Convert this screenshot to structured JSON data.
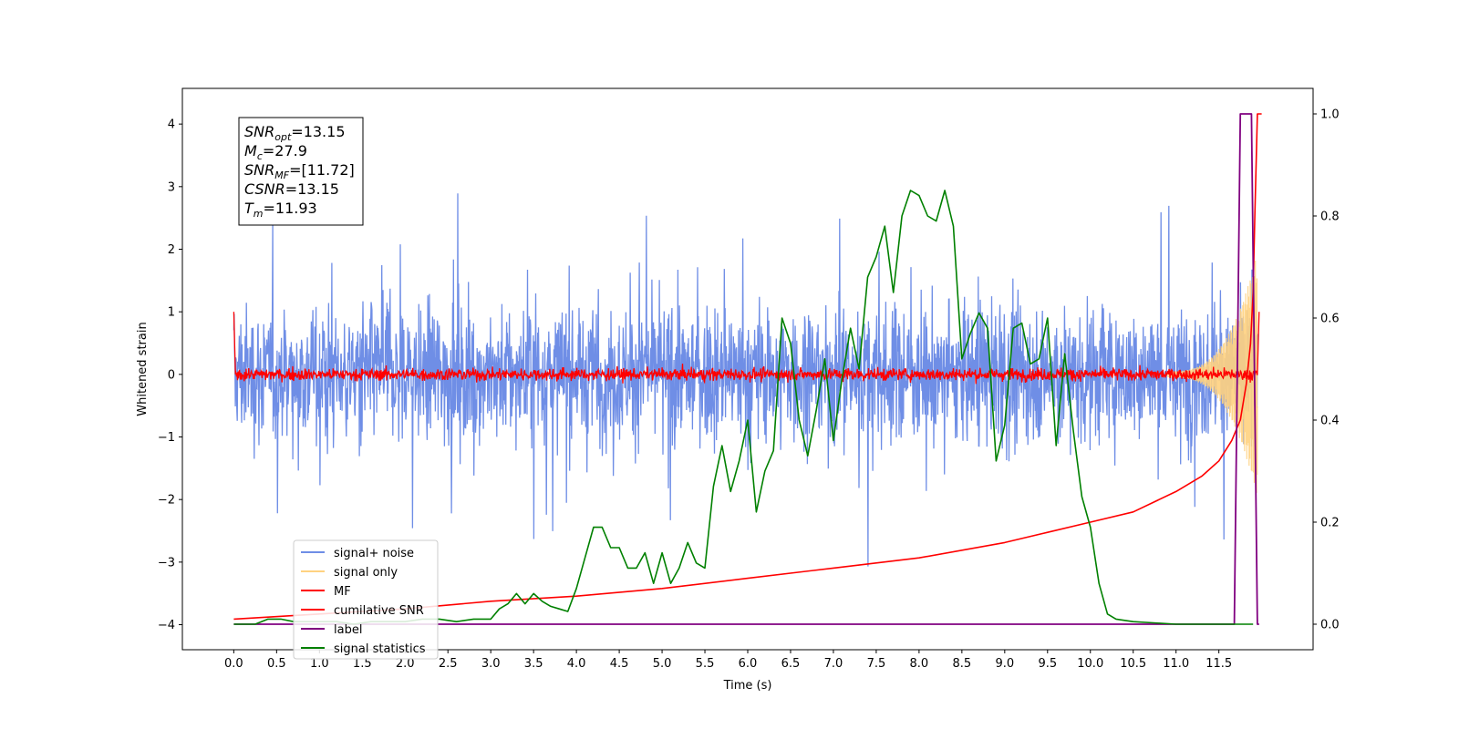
{
  "chart_data": {
    "type": "line",
    "xlabel": "Time (s)",
    "ylabel": "Whitened strain",
    "xlim": [
      -0.6,
      12.6
    ],
    "ylim": [
      -4.4,
      4.57
    ],
    "ylim_right": [
      -0.05,
      1.05
    ],
    "x_ticks": [
      0,
      0.5,
      1,
      1.5,
      2,
      2.5,
      3,
      3.5,
      4,
      4.5,
      5,
      5.5,
      6,
      6.5,
      7,
      7.5,
      8,
      8.5,
      9,
      9.5,
      10,
      10.5,
      11,
      11.5
    ],
    "x_tick_labels": [
      "0.0",
      "0.5",
      "1.0",
      "1.5",
      "2.0",
      "2.5",
      "3.0",
      "3.5",
      "4.0",
      "4.5",
      "5.0",
      "5.5",
      "6.0",
      "6.5",
      "7.0",
      "7.5",
      "8.0",
      "8.5",
      "9.0",
      "9.5",
      "10.0",
      "10.5",
      "11.0",
      "11.5"
    ],
    "y_ticks": [
      -4,
      -3,
      -2,
      -1,
      0,
      1,
      2,
      3,
      4
    ],
    "y_tick_labels": [
      "−4",
      "−3",
      "−2",
      "−1",
      "0",
      "1",
      "2",
      "3",
      "4"
    ],
    "y_right_ticks": [
      0,
      0.2,
      0.4,
      0.6,
      0.8,
      1.0
    ],
    "y_right_tick_labels": [
      "0.0",
      "0.2",
      "0.4",
      "0.6",
      "0.8",
      "1.0"
    ],
    "legend_position": "lower-left",
    "grid": false,
    "series": [
      {
        "name": "signal+ noise",
        "color": "#6f8ee6",
        "axis": "left",
        "description": "whitened noise, ±(1.5–4.2) envelope over 0–11.95 s"
      },
      {
        "name": "signal only",
        "color": "#ffd280",
        "axis": "left",
        "description": "chirp growing from ~0 near 11.0 s to ±1.9 near 11.9 s"
      },
      {
        "name": "MF",
        "color": "#ff0000",
        "axis": "left",
        "x": [
          0.0,
          0.02,
          11.95,
          11.97
        ],
        "y": [
          1.0,
          0.0,
          0.0,
          1.0
        ]
      },
      {
        "name": "cumilative SNR",
        "color": "#ff0000",
        "axis": "right",
        "x": [
          0.0,
          1.0,
          2.0,
          3.0,
          4.0,
          5.0,
          6.0,
          7.0,
          8.0,
          9.0,
          9.5,
          10.0,
          10.5,
          11.0,
          11.3,
          11.5,
          11.65,
          11.75,
          11.82,
          11.87,
          11.9,
          11.92,
          11.95,
          11.97,
          12.0
        ],
        "y": [
          0.01,
          0.02,
          0.03,
          0.045,
          0.055,
          0.07,
          0.09,
          0.11,
          0.13,
          0.16,
          0.18,
          0.2,
          0.22,
          0.26,
          0.29,
          0.32,
          0.36,
          0.4,
          0.47,
          0.55,
          0.65,
          0.8,
          1.0,
          1.0,
          1.0
        ]
      },
      {
        "name": "label",
        "color": "#800080",
        "axis": "right",
        "x": [
          0.0,
          11.68,
          11.75,
          11.88,
          11.95,
          11.97
        ],
        "y": [
          0.0,
          0.0,
          1.0,
          1.0,
          0.0,
          0.0
        ]
      },
      {
        "name": "signal statistics",
        "color": "#008000",
        "axis": "right",
        "x": [
          0.0,
          0.25,
          0.4,
          0.55,
          0.7,
          0.85,
          1.0,
          1.2,
          1.4,
          1.6,
          1.8,
          2.0,
          2.2,
          2.4,
          2.6,
          2.8,
          3.0,
          3.1,
          3.2,
          3.3,
          3.4,
          3.5,
          3.6,
          3.7,
          3.8,
          3.9,
          4.0,
          4.1,
          4.2,
          4.3,
          4.4,
          4.5,
          4.6,
          4.7,
          4.8,
          4.9,
          5.0,
          5.1,
          5.2,
          5.3,
          5.4,
          5.5,
          5.6,
          5.7,
          5.8,
          5.9,
          6.0,
          6.1,
          6.2,
          6.3,
          6.4,
          6.5,
          6.6,
          6.7,
          6.8,
          6.9,
          7.0,
          7.1,
          7.2,
          7.3,
          7.4,
          7.5,
          7.6,
          7.7,
          7.8,
          7.9,
          8.0,
          8.1,
          8.2,
          8.3,
          8.4,
          8.5,
          8.6,
          8.7,
          8.8,
          8.9,
          9.0,
          9.1,
          9.2,
          9.3,
          9.4,
          9.5,
          9.6,
          9.7,
          9.8,
          9.9,
          10.0,
          10.1,
          10.2,
          10.3,
          10.5,
          11.0,
          11.5,
          11.8,
          11.9
        ],
        "y": [
          0.0,
          0.0,
          0.01,
          0.01,
          0.005,
          0.005,
          0.005,
          0.005,
          0.0,
          0.005,
          0.005,
          0.005,
          0.01,
          0.01,
          0.005,
          0.01,
          0.01,
          0.03,
          0.04,
          0.06,
          0.04,
          0.06,
          0.045,
          0.035,
          0.03,
          0.025,
          0.07,
          0.13,
          0.19,
          0.19,
          0.15,
          0.15,
          0.11,
          0.11,
          0.14,
          0.08,
          0.14,
          0.08,
          0.11,
          0.16,
          0.12,
          0.11,
          0.27,
          0.35,
          0.26,
          0.32,
          0.4,
          0.22,
          0.3,
          0.34,
          0.6,
          0.55,
          0.4,
          0.33,
          0.42,
          0.52,
          0.36,
          0.48,
          0.58,
          0.5,
          0.68,
          0.72,
          0.78,
          0.65,
          0.8,
          0.85,
          0.84,
          0.8,
          0.79,
          0.85,
          0.78,
          0.52,
          0.57,
          0.61,
          0.58,
          0.32,
          0.39,
          0.58,
          0.59,
          0.51,
          0.52,
          0.6,
          0.35,
          0.53,
          0.38,
          0.25,
          0.19,
          0.08,
          0.02,
          0.01,
          0.005,
          0.0,
          0.0,
          0.0,
          0.0
        ]
      }
    ],
    "annotation": {
      "lines": [
        {
          "base": "SNR",
          "sub": "opt",
          "text": "=13.15"
        },
        {
          "base": "M",
          "sub": "c",
          "text": "=27.9"
        },
        {
          "base": "SNR",
          "sub": "MF",
          "text": "=[11.72]"
        },
        {
          "base": "CSNR",
          "sub": "",
          "text": "=13.15"
        },
        {
          "base": "T",
          "sub": "m",
          "text": "=11.93"
        }
      ]
    }
  }
}
